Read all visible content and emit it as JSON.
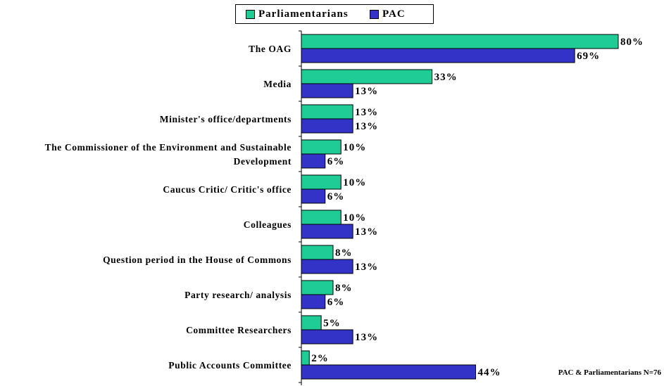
{
  "chart_data": {
    "type": "bar",
    "orientation": "horizontal",
    "categories": [
      "The OAG",
      "Media",
      "Minister's office/departments",
      "The Commissioner of the Environment and Sustainable Development",
      "Caucus Critic/ Critic's office",
      "Colleagues",
      "Question period in the House of Commons",
      "Party research/ analysis",
      "Committee Researchers",
      "Public Accounts Committee"
    ],
    "category_lines": [
      [
        "The OAG"
      ],
      [
        "Media"
      ],
      [
        "Minister's office/departments"
      ],
      [
        "The Commissioner of the Environment and Sustainable",
        "Development"
      ],
      [
        "Caucus Critic/ Critic's office"
      ],
      [
        "Colleagues"
      ],
      [
        "Question period in the House of Commons"
      ],
      [
        "Party research/ analysis"
      ],
      [
        "Committee Researchers"
      ],
      [
        "Public Accounts Committee"
      ]
    ],
    "series": [
      {
        "name": "Parliamentarians",
        "values": [
          80,
          33,
          13,
          10,
          10,
          10,
          8,
          8,
          5,
          2
        ],
        "labels": [
          "80%",
          "33%",
          "13%",
          "10%",
          "10%",
          "10%",
          "8%",
          "8%",
          "5%",
          "2%"
        ]
      },
      {
        "name": "PAC",
        "values": [
          69,
          13,
          13,
          6,
          6,
          13,
          13,
          6,
          13,
          44
        ],
        "labels": [
          "69%",
          "13%",
          "13%",
          "6%",
          "6%",
          "13%",
          "13%",
          "6%",
          "13%",
          "44%"
        ]
      }
    ],
    "xlim": [
      0,
      100
    ],
    "grid": false,
    "legend_position": "top",
    "note": "PAC & Parliamentarians N=76"
  },
  "colors": {
    "Parliamentarians": "#1fcc96",
    "PAC": "#3333c8"
  }
}
